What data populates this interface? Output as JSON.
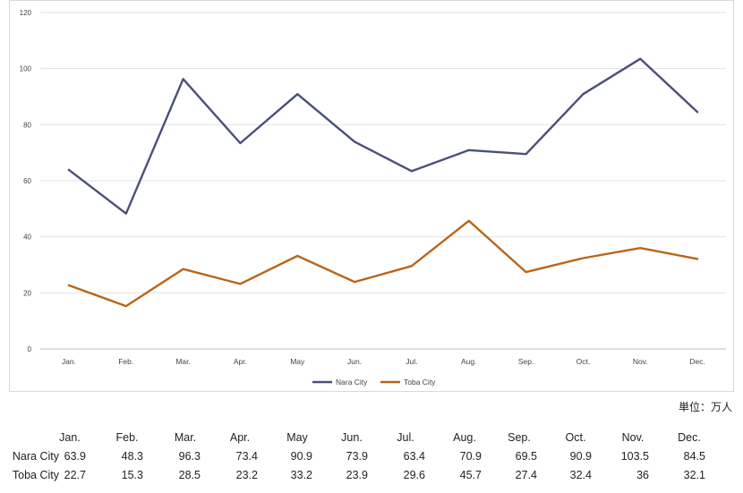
{
  "chart_data": {
    "type": "line",
    "categories": [
      "Jan.",
      "Feb.",
      "Mar.",
      "Apr.",
      "May",
      "Jun.",
      "Jul.",
      "Aug.",
      "Sep.",
      "Oct.",
      "Nov.",
      "Dec."
    ],
    "series": [
      {
        "name": "Nara City",
        "values": [
          63.9,
          48.3,
          96.3,
          73.4,
          90.9,
          73.9,
          63.4,
          70.9,
          69.5,
          90.9,
          103.5,
          84.5
        ],
        "color": "#4a5079"
      },
      {
        "name": "Toba City",
        "values": [
          22.7,
          15.3,
          28.5,
          23.2,
          33.2,
          23.9,
          29.6,
          45.7,
          27.4,
          32.4,
          36,
          32.1
        ],
        "color": "#b8651b"
      }
    ],
    "ylim": [
      0,
      120
    ],
    "yticks": [
      0,
      20,
      40,
      60,
      80,
      100,
      120
    ],
    "grid": true,
    "legend": "bottom-center"
  },
  "unit_label": "単位：万人",
  "table": {
    "headers": [
      "Jan.",
      "Feb.",
      "Mar.",
      "Apr.",
      "May",
      "Jun.",
      "Jul.",
      "Aug.",
      "Sep.",
      "Oct.",
      "Nov.",
      "Dec."
    ],
    "rows": [
      {
        "name": "Nara City",
        "values": [
          "63.9",
          "48.3",
          "96.3",
          "73.4",
          "90.9",
          "73.9",
          "63.4",
          "70.9",
          "69.5",
          "90.9",
          "103.5",
          "84.5"
        ]
      },
      {
        "name": "Toba City",
        "values": [
          "22.7",
          "15.3",
          "28.5",
          "23.2",
          "33.2",
          "23.9",
          "29.6",
          "45.7",
          "27.4",
          "32.4",
          "36",
          "32.1"
        ]
      }
    ]
  }
}
